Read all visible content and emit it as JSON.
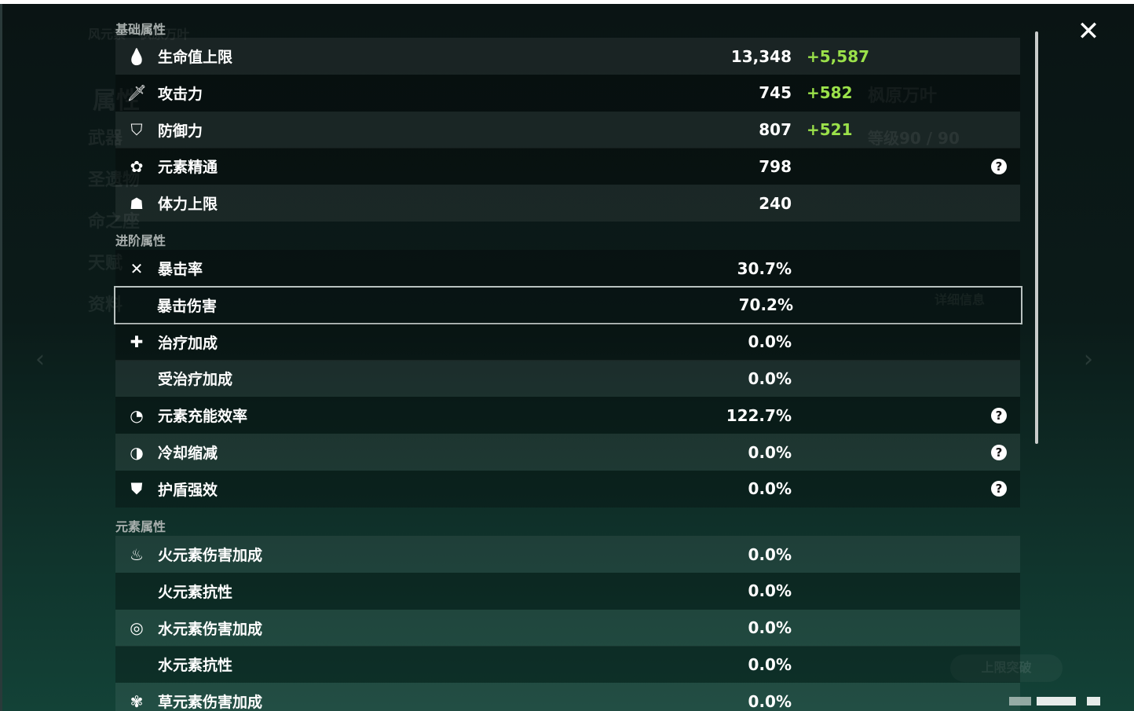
{
  "background": {
    "character_title": "风元素 · 枫原万叶",
    "character_name": "枫原万叶",
    "level": "等级90 / 90",
    "menu": [
      "属性",
      "武器",
      "圣遗物",
      "命之座",
      "天赋",
      "资料"
    ],
    "detail_button": "详细信息",
    "ascend_button": "上限突破"
  },
  "sections": {
    "base": "基础属性",
    "advanced": "进阶属性",
    "elemental": "元素属性"
  },
  "base_stats": [
    {
      "icon": "hp-drop-icon",
      "label": "生命值上限",
      "value": "13,348",
      "bonus": "+5,587"
    },
    {
      "icon": "sword-icon",
      "label": "攻击力",
      "value": "745",
      "bonus": "+582"
    },
    {
      "icon": "shield-icon",
      "label": "防御力",
      "value": "807",
      "bonus": "+521"
    },
    {
      "icon": "elemental-mastery-icon",
      "label": "元素精通",
      "value": "798",
      "help": "?"
    },
    {
      "icon": "stamina-icon",
      "label": "体力上限",
      "value": "240"
    }
  ],
  "advanced_stats": [
    {
      "icon": "crit-rate-icon",
      "label": "暴击率",
      "value": "30.7%"
    },
    {
      "icon": "crit-dmg-icon",
      "label": "暴击伤害",
      "value": "70.2%",
      "selected": true
    },
    {
      "icon": "healing-cross-icon",
      "label": "治疗加成",
      "value": "0.0%"
    },
    {
      "icon": "",
      "label": "受治疗加成",
      "value": "0.0%"
    },
    {
      "icon": "energy-recharge-icon",
      "label": "元素充能效率",
      "value": "122.7%",
      "help": "?"
    },
    {
      "icon": "cooldown-icon",
      "label": "冷却缩减",
      "value": "0.0%",
      "help": "?"
    },
    {
      "icon": "shield-strength-icon",
      "label": "护盾强效",
      "value": "0.0%",
      "help": "?"
    }
  ],
  "elemental_stats": [
    {
      "icon": "pyro-icon",
      "label": "火元素伤害加成",
      "value": "0.0%"
    },
    {
      "icon": "",
      "label": "火元素抗性",
      "value": "0.0%"
    },
    {
      "icon": "hydro-icon",
      "label": "水元素伤害加成",
      "value": "0.0%"
    },
    {
      "icon": "",
      "label": "水元素抗性",
      "value": "0.0%"
    },
    {
      "icon": "dendro-icon",
      "label": "草元素伤害加成",
      "value": "0.0%"
    }
  ],
  "close_label": "✕"
}
